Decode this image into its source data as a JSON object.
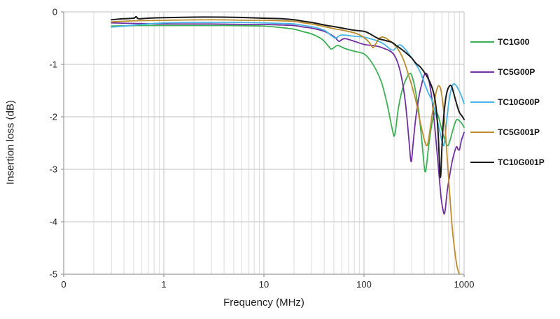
{
  "chart_data": {
    "type": "line",
    "title": "",
    "xlabel": "Frequency (MHz)",
    "ylabel": "Insertion loss (dB)",
    "x_scale": "log",
    "xlim": [
      0.1,
      1000
    ],
    "ylim": [
      -5,
      0
    ],
    "grid": true,
    "legend_position": "right",
    "x_ticks": [
      {
        "label": "0",
        "value": 0.1
      },
      {
        "label": "1",
        "value": 1
      },
      {
        "label": "10",
        "value": 10
      },
      {
        "label": "100",
        "value": 100
      },
      {
        "label": "1000",
        "value": 1000
      }
    ],
    "y_ticks": [
      {
        "label": "0",
        "value": 0
      },
      {
        "label": "-1",
        "value": -1
      },
      {
        "label": "-2",
        "value": -2
      },
      {
        "label": "-3",
        "value": -3
      },
      {
        "label": "-4",
        "value": -4
      },
      {
        "label": "-5",
        "value": -5
      }
    ],
    "colors": {
      "minor_grid": "#dcdcdc",
      "major_grid": "#c2c2c2",
      "axis": "#9a9a9a",
      "tick_text": "#262626"
    },
    "series": [
      {
        "name": "TC1G00",
        "color": "#3cb054",
        "points": [
          [
            0.3,
            -0.27
          ],
          [
            0.4,
            -0.265
          ],
          [
            0.6,
            -0.26
          ],
          [
            1,
            -0.26
          ],
          [
            2,
            -0.26
          ],
          [
            4,
            -0.26
          ],
          [
            7,
            -0.265
          ],
          [
            10,
            -0.27
          ],
          [
            15,
            -0.3
          ],
          [
            20,
            -0.33
          ],
          [
            25,
            -0.38
          ],
          [
            30,
            -0.42
          ],
          [
            38,
            -0.52
          ],
          [
            44,
            -0.65
          ],
          [
            47,
            -0.71
          ],
          [
            51,
            -0.67
          ],
          [
            55,
            -0.64
          ],
          [
            65,
            -0.7
          ],
          [
            80,
            -0.75
          ],
          [
            100,
            -0.8
          ],
          [
            115,
            -0.92
          ],
          [
            130,
            -1.08
          ],
          [
            150,
            -1.35
          ],
          [
            170,
            -1.75
          ],
          [
            185,
            -2.1
          ],
          [
            195,
            -2.3
          ],
          [
            200,
            -2.37
          ],
          [
            207,
            -2.25
          ],
          [
            220,
            -1.85
          ],
          [
            240,
            -1.5
          ],
          [
            265,
            -1.27
          ],
          [
            290,
            -1.17
          ],
          [
            310,
            -1.3
          ],
          [
            330,
            -1.55
          ],
          [
            355,
            -1.95
          ],
          [
            380,
            -2.5
          ],
          [
            400,
            -2.95
          ],
          [
            410,
            -3.05
          ],
          [
            420,
            -2.95
          ],
          [
            440,
            -2.6
          ],
          [
            470,
            -2.2
          ],
          [
            500,
            -1.97
          ],
          [
            525,
            -1.9
          ],
          [
            555,
            -2.0
          ],
          [
            590,
            -2.2
          ],
          [
            630,
            -2.4
          ],
          [
            660,
            -2.5
          ],
          [
            685,
            -2.55
          ],
          [
            710,
            -2.5
          ],
          [
            760,
            -2.3
          ],
          [
            810,
            -2.12
          ],
          [
            850,
            -2.05
          ],
          [
            900,
            -2.08
          ],
          [
            950,
            -2.13
          ],
          [
            1000,
            -2.2
          ]
        ]
      },
      {
        "name": "TC5G00P",
        "color": "#7030a0",
        "points": [
          [
            0.3,
            -0.21
          ],
          [
            0.5,
            -0.22
          ],
          [
            1,
            -0.23
          ],
          [
            3,
            -0.23
          ],
          [
            7,
            -0.24
          ],
          [
            10,
            -0.24
          ],
          [
            15,
            -0.25
          ],
          [
            20,
            -0.26
          ],
          [
            25,
            -0.29
          ],
          [
            30,
            -0.31
          ],
          [
            40,
            -0.37
          ],
          [
            50,
            -0.47
          ],
          [
            55,
            -0.55
          ],
          [
            57,
            -0.56
          ],
          [
            60,
            -0.53
          ],
          [
            65,
            -0.51
          ],
          [
            80,
            -0.56
          ],
          [
            100,
            -0.62
          ],
          [
            120,
            -0.64
          ],
          [
            140,
            -0.66
          ],
          [
            160,
            -0.7
          ],
          [
            180,
            -0.74
          ],
          [
            200,
            -0.82
          ],
          [
            220,
            -1.0
          ],
          [
            240,
            -1.3
          ],
          [
            260,
            -1.75
          ],
          [
            280,
            -2.4
          ],
          [
            290,
            -2.75
          ],
          [
            295,
            -2.85
          ],
          [
            300,
            -2.8
          ],
          [
            310,
            -2.5
          ],
          [
            330,
            -2.0
          ],
          [
            355,
            -1.6
          ],
          [
            380,
            -1.35
          ],
          [
            400,
            -1.2
          ],
          [
            415,
            -1.17
          ],
          [
            430,
            -1.2
          ],
          [
            450,
            -1.35
          ],
          [
            480,
            -1.7
          ],
          [
            510,
            -2.2
          ],
          [
            550,
            -2.9
          ],
          [
            590,
            -3.55
          ],
          [
            620,
            -3.8
          ],
          [
            635,
            -3.85
          ],
          [
            650,
            -3.75
          ],
          [
            680,
            -3.4
          ],
          [
            720,
            -3.1
          ],
          [
            760,
            -2.85
          ],
          [
            800,
            -2.68
          ],
          [
            840,
            -2.57
          ],
          [
            870,
            -2.62
          ],
          [
            900,
            -2.62
          ],
          [
            940,
            -2.45
          ],
          [
            1000,
            -2.3
          ]
        ]
      },
      {
        "name": "TC10G00P",
        "color": "#45b4e5",
        "points": [
          [
            0.3,
            -0.29
          ],
          [
            0.4,
            -0.27
          ],
          [
            0.6,
            -0.24
          ],
          [
            1,
            -0.21
          ],
          [
            2,
            -0.2
          ],
          [
            5,
            -0.2
          ],
          [
            10,
            -0.21
          ],
          [
            15,
            -0.22
          ],
          [
            20,
            -0.23
          ],
          [
            25,
            -0.26
          ],
          [
            30,
            -0.28
          ],
          [
            40,
            -0.35
          ],
          [
            47,
            -0.45
          ],
          [
            52,
            -0.5
          ],
          [
            56,
            -0.46
          ],
          [
            60,
            -0.44
          ],
          [
            70,
            -0.45
          ],
          [
            85,
            -0.47
          ],
          [
            100,
            -0.48
          ],
          [
            120,
            -0.52
          ],
          [
            140,
            -0.56
          ],
          [
            160,
            -0.62
          ],
          [
            180,
            -0.7
          ],
          [
            195,
            -0.73
          ],
          [
            210,
            -0.68
          ],
          [
            225,
            -0.63
          ],
          [
            240,
            -0.65
          ],
          [
            260,
            -0.72
          ],
          [
            280,
            -0.8
          ],
          [
            300,
            -0.88
          ],
          [
            330,
            -1.0
          ],
          [
            365,
            -1.15
          ],
          [
            400,
            -1.35
          ],
          [
            440,
            -1.55
          ],
          [
            480,
            -1.7
          ],
          [
            520,
            -1.95
          ],
          [
            560,
            -2.2
          ],
          [
            590,
            -2.4
          ],
          [
            615,
            -2.52
          ],
          [
            627,
            -2.55
          ],
          [
            640,
            -2.45
          ],
          [
            660,
            -2.2
          ],
          [
            690,
            -1.85
          ],
          [
            720,
            -1.6
          ],
          [
            760,
            -1.42
          ],
          [
            790,
            -1.37
          ],
          [
            830,
            -1.4
          ],
          [
            880,
            -1.48
          ],
          [
            930,
            -1.58
          ],
          [
            1000,
            -1.75
          ]
        ]
      },
      {
        "name": "TC5G001P",
        "color": "#bd8d2c",
        "points": [
          [
            0.3,
            -0.19
          ],
          [
            0.5,
            -0.17
          ],
          [
            1,
            -0.16
          ],
          [
            3,
            -0.15
          ],
          [
            7,
            -0.16
          ],
          [
            10,
            -0.16
          ],
          [
            15,
            -0.17
          ],
          [
            20,
            -0.18
          ],
          [
            25,
            -0.21
          ],
          [
            30,
            -0.23
          ],
          [
            40,
            -0.28
          ],
          [
            50,
            -0.32
          ],
          [
            65,
            -0.36
          ],
          [
            80,
            -0.4
          ],
          [
            95,
            -0.46
          ],
          [
            110,
            -0.56
          ],
          [
            120,
            -0.66
          ],
          [
            124,
            -0.68
          ],
          [
            130,
            -0.62
          ],
          [
            140,
            -0.52
          ],
          [
            150,
            -0.48
          ],
          [
            165,
            -0.5
          ],
          [
            180,
            -0.55
          ],
          [
            200,
            -0.62
          ],
          [
            220,
            -0.72
          ],
          [
            240,
            -0.85
          ],
          [
            260,
            -1.02
          ],
          [
            280,
            -1.22
          ],
          [
            300,
            -1.4
          ],
          [
            330,
            -1.7
          ],
          [
            360,
            -2.05
          ],
          [
            390,
            -2.35
          ],
          [
            410,
            -2.5
          ],
          [
            425,
            -2.55
          ],
          [
            440,
            -2.45
          ],
          [
            460,
            -2.2
          ],
          [
            480,
            -1.95
          ],
          [
            510,
            -1.65
          ],
          [
            540,
            -1.45
          ],
          [
            560,
            -1.41
          ],
          [
            580,
            -1.45
          ],
          [
            600,
            -1.6
          ],
          [
            630,
            -1.95
          ],
          [
            660,
            -2.45
          ],
          [
            690,
            -3.0
          ],
          [
            720,
            -3.5
          ],
          [
            760,
            -4.1
          ],
          [
            800,
            -4.5
          ],
          [
            850,
            -4.85
          ],
          [
            895,
            -5.0
          ]
        ]
      },
      {
        "name": "TC10G001P",
        "color": "#1a1a1a",
        "points": [
          [
            0.3,
            -0.15
          ],
          [
            0.4,
            -0.13
          ],
          [
            0.5,
            -0.12
          ],
          [
            0.53,
            -0.09
          ],
          [
            0.56,
            -0.13
          ],
          [
            0.7,
            -0.12
          ],
          [
            1,
            -0.11
          ],
          [
            2,
            -0.1
          ],
          [
            4,
            -0.1
          ],
          [
            7,
            -0.11
          ],
          [
            10,
            -0.12
          ],
          [
            15,
            -0.13
          ],
          [
            20,
            -0.15
          ],
          [
            25,
            -0.18
          ],
          [
            30,
            -0.2
          ],
          [
            40,
            -0.25
          ],
          [
            50,
            -0.28
          ],
          [
            65,
            -0.32
          ],
          [
            80,
            -0.35
          ],
          [
            100,
            -0.37
          ],
          [
            115,
            -0.42
          ],
          [
            130,
            -0.48
          ],
          [
            145,
            -0.52
          ],
          [
            160,
            -0.54
          ],
          [
            175,
            -0.56
          ],
          [
            190,
            -0.58
          ],
          [
            210,
            -0.64
          ],
          [
            240,
            -0.72
          ],
          [
            270,
            -0.8
          ],
          [
            300,
            -0.88
          ],
          [
            330,
            -0.98
          ],
          [
            365,
            -1.05
          ],
          [
            400,
            -1.15
          ],
          [
            440,
            -1.28
          ],
          [
            480,
            -1.45
          ],
          [
            510,
            -1.65
          ],
          [
            530,
            -1.9
          ],
          [
            550,
            -2.3
          ],
          [
            565,
            -2.8
          ],
          [
            575,
            -3.1
          ],
          [
            580,
            -3.15
          ],
          [
            587,
            -3.05
          ],
          [
            600,
            -2.6
          ],
          [
            620,
            -2.1
          ],
          [
            650,
            -1.7
          ],
          [
            680,
            -1.5
          ],
          [
            710,
            -1.42
          ],
          [
            735,
            -1.4
          ],
          [
            760,
            -1.45
          ],
          [
            800,
            -1.6
          ],
          [
            850,
            -1.78
          ],
          [
            900,
            -1.92
          ],
          [
            950,
            -1.98
          ],
          [
            1000,
            -2.05
          ]
        ]
      }
    ]
  }
}
